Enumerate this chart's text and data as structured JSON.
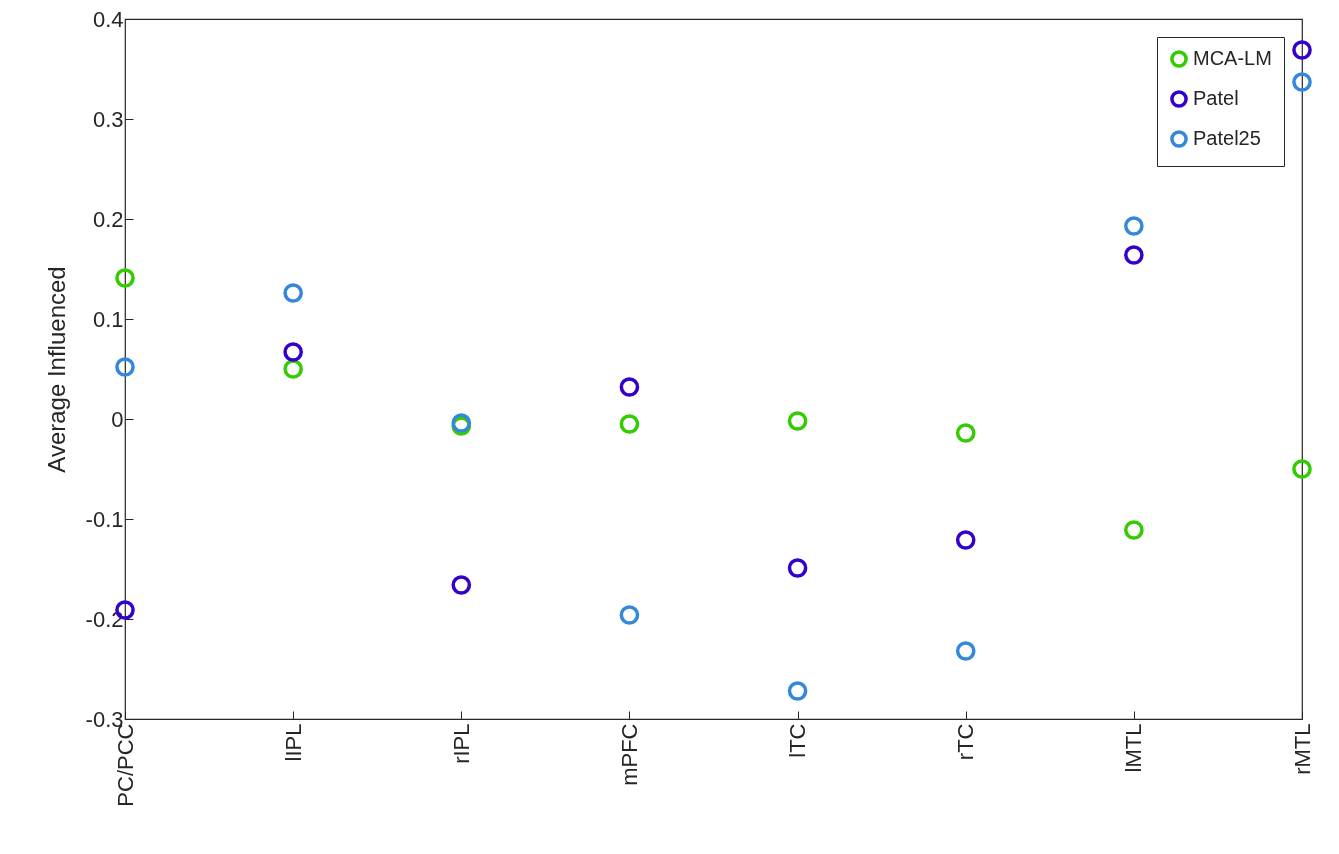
{
  "chart_data": {
    "type": "scatter",
    "ylabel": "Average Influenced",
    "categories": [
      "PC/PCC",
      "lIPL",
      "rIPL",
      "mPFC",
      "lTC",
      "rTC",
      "lMTL",
      "rMTL"
    ],
    "series": [
      {
        "name": "MCA-LM",
        "color": "#33cc00",
        "values": [
          0.141,
          0.05,
          -0.007,
          -0.005,
          -0.002,
          -0.014,
          -0.111,
          -0.05
        ]
      },
      {
        "name": "Patel",
        "color": "#3300cc",
        "values": [
          -0.191,
          0.067,
          -0.166,
          0.032,
          -0.149,
          -0.121,
          0.164,
          0.369
        ]
      },
      {
        "name": "Patel25",
        "color": "#3388dd",
        "values": [
          0.052,
          0.126,
          -0.004,
          -0.196,
          -0.272,
          -0.232,
          0.193,
          0.337
        ]
      }
    ],
    "ylim": [
      -0.3,
      0.4
    ],
    "yticks": [
      -0.3,
      -0.2,
      -0.1,
      0,
      0.1,
      0.2,
      0.3,
      0.4
    ],
    "legend": "top right",
    "marker": "circle",
    "grid": false
  }
}
